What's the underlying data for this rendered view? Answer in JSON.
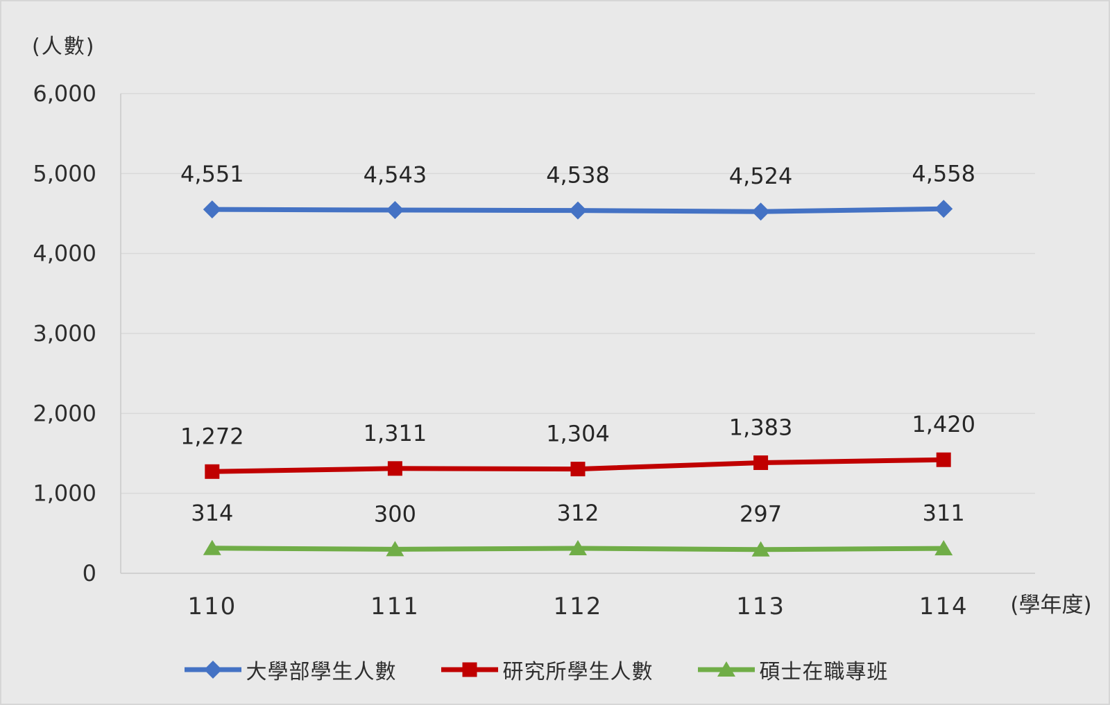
{
  "chart_data": {
    "type": "line",
    "title": "",
    "y_unit_label": "(人數)",
    "x_unit_label": "(學年度)",
    "xlabel": "",
    "ylabel": "",
    "categories": [
      "110",
      "111",
      "112",
      "113",
      "114"
    ],
    "series": [
      {
        "name": "大學部學生人數",
        "color": "#4472C4",
        "marker": "diamond",
        "values": [
          4551,
          4543,
          4538,
          4524,
          4558
        ],
        "labels": [
          "4,551",
          "4,543",
          "4,538",
          "4,524",
          "4,558"
        ]
      },
      {
        "name": "研究所學生人數",
        "color": "#C00000",
        "marker": "square",
        "values": [
          1272,
          1311,
          1304,
          1383,
          1420
        ],
        "labels": [
          "1,272",
          "1,311",
          "1,304",
          "1,383",
          "1,420"
        ]
      },
      {
        "name": "碩士在職專班",
        "color": "#70AD47",
        "marker": "triangle",
        "values": [
          314,
          300,
          312,
          297,
          311
        ],
        "labels": [
          "314",
          "300",
          "312",
          "297",
          "311"
        ]
      }
    ],
    "ylim": [
      0,
      6000
    ],
    "y_ticks": [
      0,
      1000,
      2000,
      3000,
      4000,
      5000,
      6000
    ],
    "y_tick_labels": [
      "0",
      "1,000",
      "2,000",
      "3,000",
      "4,000",
      "5,000",
      "6,000"
    ],
    "grid": true,
    "legend_position": "bottom"
  },
  "colors": {
    "background": "#e9e9e9",
    "gridline": "#d9d9d9",
    "axis_line": "#c9c9c9",
    "text": "#2e2e2e"
  }
}
